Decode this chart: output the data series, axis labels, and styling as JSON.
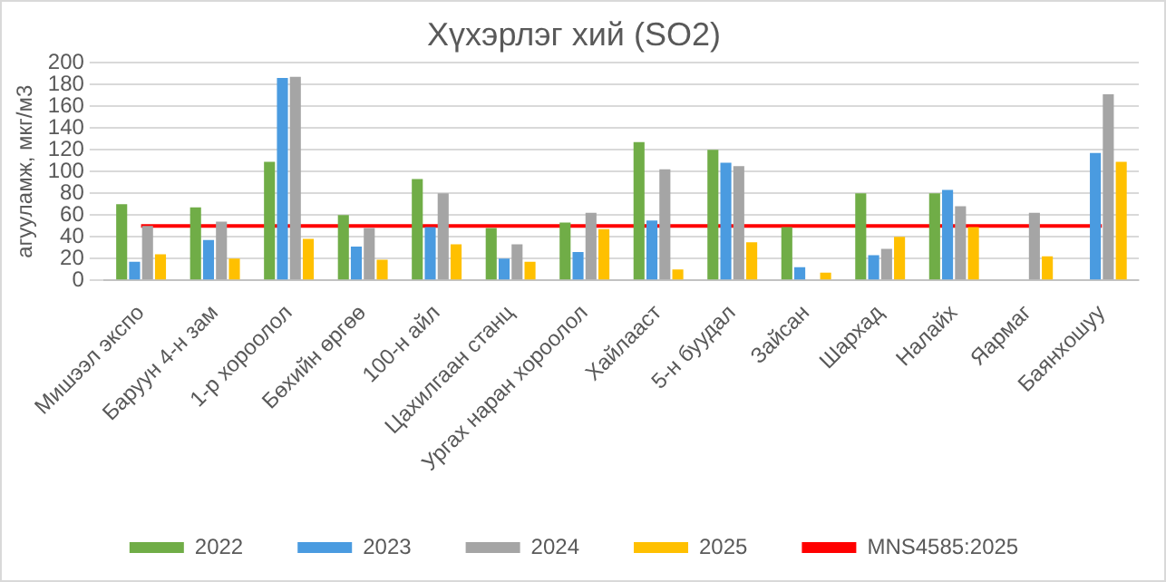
{
  "chart_data": {
    "type": "bar",
    "title": "Хүхэрлэг хий (SO2)",
    "ylabel": "агууламж, мкг/м3",
    "categories": [
      "Мишээл экспо",
      "Баруун 4-н зам",
      "1-р хороолол",
      "Бөхийн өргөө",
      "100-н айл",
      "Цахилгаан станц",
      "Ургах наран хороолол",
      "Хайлааст",
      "5-н буудал",
      "Зайсан",
      "Шархад",
      "Налайх",
      "Яармаг",
      "Баянхошуу"
    ],
    "series": [
      {
        "name": "2022",
        "color": "#70ad47",
        "values": [
          70,
          67,
          109,
          60,
          93,
          48,
          53,
          127,
          120,
          49,
          80,
          80,
          null,
          null
        ]
      },
      {
        "name": "2023",
        "color": "#4a9be0",
        "values": [
          17,
          37,
          186,
          31,
          49,
          20,
          26,
          55,
          108,
          12,
          23,
          83,
          null,
          117
        ]
      },
      {
        "name": "2024",
        "color": "#a5a5a5",
        "values": [
          50,
          54,
          187,
          48,
          80,
          33,
          62,
          102,
          105,
          null,
          29,
          68,
          62,
          171
        ]
      },
      {
        "name": "2025",
        "color": "#ffc000",
        "values": [
          24,
          20,
          38,
          19,
          33,
          17,
          47,
          10,
          35,
          7,
          40,
          49,
          22,
          109
        ]
      },
      {
        "name": "MNS4585:2025",
        "type": "line",
        "color": "#ff0000",
        "values": [
          50,
          50,
          50,
          50,
          50,
          50,
          50,
          50,
          50,
          50,
          50,
          50,
          50,
          50
        ]
      }
    ],
    "ylim": [
      0,
      200
    ],
    "yticks": [
      0,
      20,
      40,
      60,
      80,
      100,
      120,
      140,
      160,
      180,
      200
    ],
    "grid": "y",
    "legend": "bottom"
  }
}
